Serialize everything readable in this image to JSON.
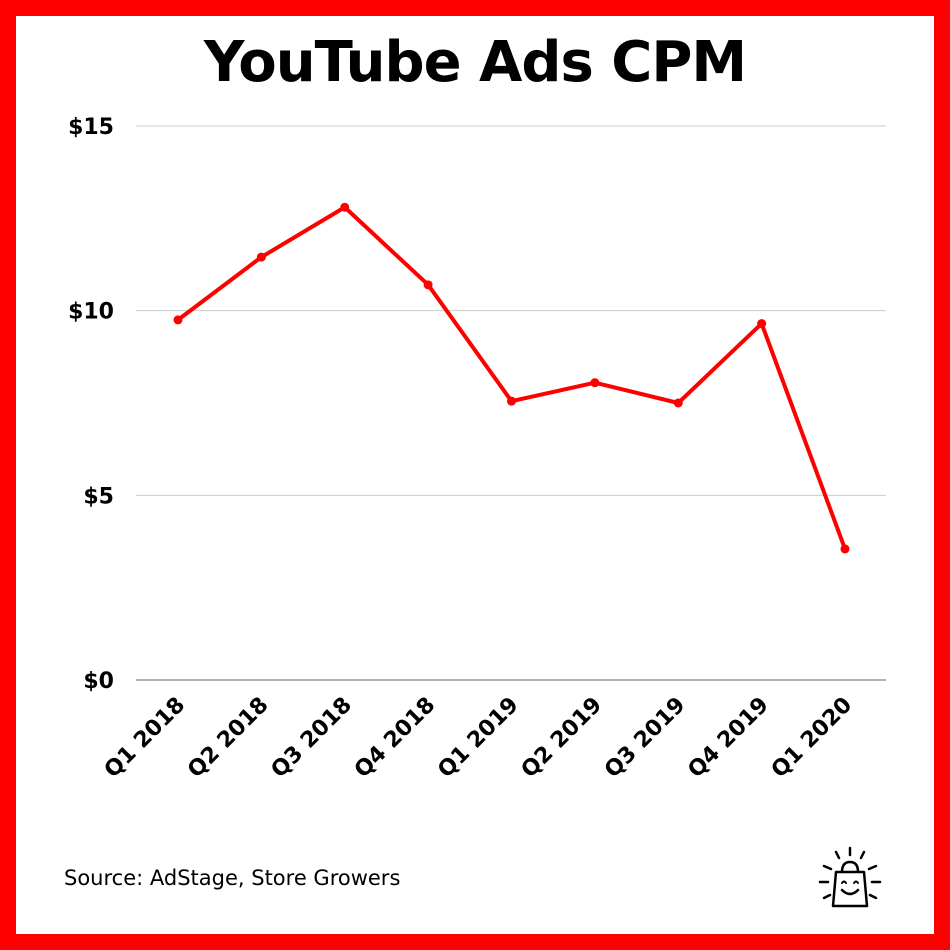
{
  "title": "YouTube Ads CPM",
  "source": "Source: AdStage, Store Growers",
  "colors": {
    "frame": "#ff0000",
    "line": "#ff0000",
    "grid": "#cccccc",
    "text": "#000000"
  },
  "logo_icon": "smiling-shopping-bag-icon",
  "chart_data": {
    "type": "line",
    "title": "YouTube Ads CPM",
    "xlabel": "",
    "ylabel": "",
    "categories": [
      "Q1 2018",
      "Q2 2018",
      "Q3 2018",
      "Q4 2018",
      "Q1 2019",
      "Q2 2019",
      "Q3 2019",
      "Q4 2019",
      "Q1 2020"
    ],
    "values": [
      9.75,
      11.45,
      12.8,
      10.7,
      7.55,
      8.05,
      7.5,
      9.65,
      3.55
    ],
    "ylim": [
      0,
      15
    ],
    "yticks": [
      0,
      5,
      10,
      15
    ],
    "ytick_labels": [
      "$0",
      "$5",
      "$10",
      "$15"
    ],
    "grid": true,
    "legend": "none"
  }
}
